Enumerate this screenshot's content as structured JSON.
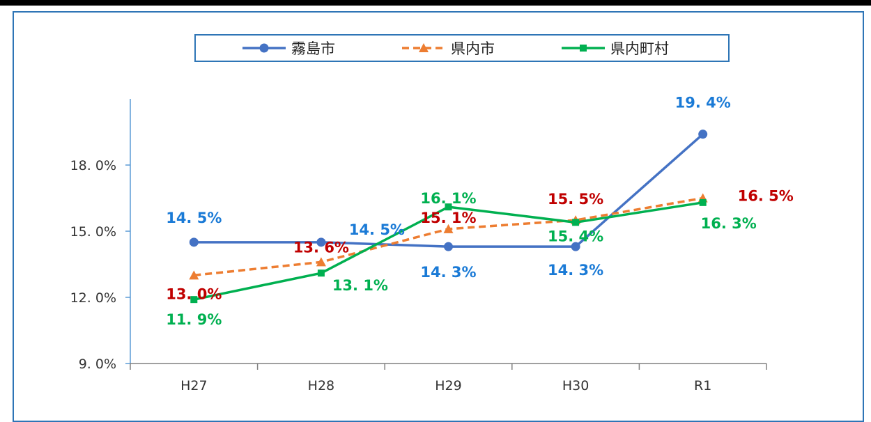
{
  "chart_data": {
    "type": "line",
    "categories": [
      "H27",
      "H28",
      "H29",
      "H30",
      "R1"
    ],
    "ylim": [
      9,
      21
    ],
    "yticks": [
      9,
      12,
      15,
      18
    ],
    "ytick_labels": [
      "9. 0%",
      "12. 0%",
      "15. 0%",
      "18. 0%"
    ],
    "legend_position": "top",
    "grid": false,
    "series": [
      {
        "name": "霧島市",
        "color": "#4472c4",
        "label_color": "#1a7ad6",
        "marker": "circle",
        "dash": "solid",
        "values": [
          14.5,
          14.5,
          14.3,
          14.3,
          19.4
        ],
        "labels": [
          "14. 5%",
          "14. 5%",
          "14. 3%",
          "14. 3%",
          "19. 4%"
        ]
      },
      {
        "name": "県内市",
        "color": "#ed7d31",
        "label_color": "#c00000",
        "marker": "triangle",
        "dash": "dashed",
        "values": [
          13.0,
          13.6,
          15.1,
          15.5,
          16.5
        ],
        "labels": [
          "13. 0%",
          "13. 6%",
          "15. 1%",
          "15. 5%",
          "16. 5%"
        ]
      },
      {
        "name": "県内町村",
        "color": "#00b050",
        "label_color": "#00b050",
        "marker": "square",
        "dash": "solid",
        "values": [
          11.9,
          13.1,
          16.1,
          15.4,
          16.3
        ],
        "labels": [
          "11. 9%",
          "13. 1%",
          "16. 1%",
          "15. 4%",
          "16. 3%"
        ]
      }
    ]
  }
}
